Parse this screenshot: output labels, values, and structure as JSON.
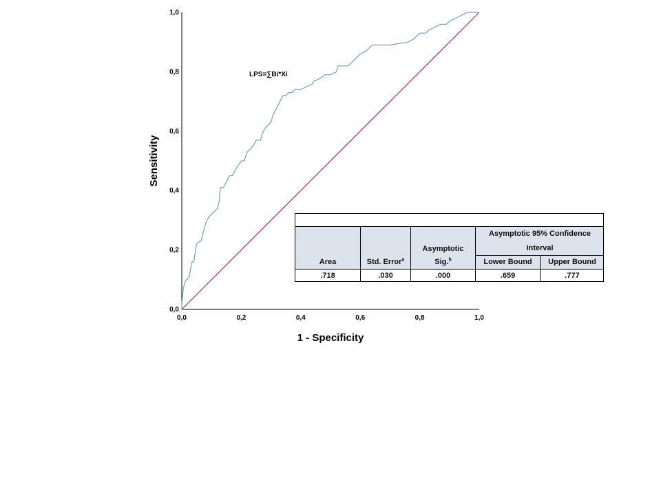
{
  "chart_data": {
    "type": "line",
    "title": "",
    "xlabel": "1 - Specificity",
    "ylabel": "Sensitivity",
    "xlim": [
      0,
      1
    ],
    "ylim": [
      0,
      1
    ],
    "x_ticks": [
      "0,0",
      "0,2",
      "0,4",
      "0,6",
      "0,8",
      "1,0"
    ],
    "y_ticks": [
      "0,0",
      "0,2",
      "0,4",
      "0,6",
      "0,8",
      "1,0"
    ],
    "grid": false,
    "annotation": "LPS=∑Bi*Xi",
    "series": [
      {
        "name": "",
        "color": "#6a9fcf",
        "x": [
          0.0,
          0.0,
          0.005,
          0.01,
          0.015,
          0.018,
          0.025,
          0.03,
          0.035,
          0.038,
          0.04,
          0.05,
          0.06,
          0.065,
          0.07,
          0.08,
          0.09,
          0.1,
          0.12,
          0.125,
          0.13,
          0.14,
          0.15,
          0.16,
          0.17,
          0.18,
          0.2,
          0.21,
          0.22,
          0.23,
          0.24,
          0.25,
          0.255,
          0.265,
          0.27,
          0.28,
          0.3,
          0.305,
          0.31,
          0.32,
          0.33,
          0.34,
          0.35,
          0.36,
          0.37,
          0.38,
          0.4,
          0.42,
          0.44,
          0.445,
          0.45,
          0.47,
          0.48,
          0.5,
          0.52,
          0.525,
          0.53,
          0.56,
          0.58,
          0.6,
          0.62,
          0.63,
          0.64,
          0.66,
          0.7,
          0.76,
          0.78,
          0.79,
          0.8,
          0.82,
          0.83,
          0.85,
          0.87,
          0.88,
          0.89,
          0.9,
          0.92,
          0.94,
          0.96,
          0.98,
          1.0
        ],
        "y": [
          0.0,
          0.02,
          0.07,
          0.09,
          0.1,
          0.1,
          0.11,
          0.14,
          0.16,
          0.16,
          0.16,
          0.22,
          0.23,
          0.23,
          0.25,
          0.29,
          0.31,
          0.32,
          0.34,
          0.36,
          0.41,
          0.41,
          0.43,
          0.45,
          0.45,
          0.47,
          0.5,
          0.5,
          0.53,
          0.54,
          0.55,
          0.57,
          0.57,
          0.57,
          0.59,
          0.61,
          0.63,
          0.65,
          0.66,
          0.68,
          0.7,
          0.72,
          0.72,
          0.73,
          0.73,
          0.74,
          0.74,
          0.75,
          0.76,
          0.77,
          0.77,
          0.78,
          0.79,
          0.79,
          0.8,
          0.82,
          0.82,
          0.82,
          0.84,
          0.86,
          0.87,
          0.88,
          0.89,
          0.89,
          0.89,
          0.9,
          0.91,
          0.92,
          0.93,
          0.93,
          0.94,
          0.95,
          0.96,
          0.96,
          0.96,
          0.97,
          0.98,
          0.99,
          1.0,
          1.0,
          1.0
        ]
      },
      {
        "name": "",
        "color": "#c8254e",
        "x": [
          0,
          1
        ],
        "y": [
          0,
          1
        ]
      }
    ]
  },
  "stats_table": {
    "headers": {
      "area": "Area",
      "std_error": "Std. Error",
      "std_error_sup": "a",
      "asym_sig_line1": "Asymptotic",
      "asym_sig_line2": "Sig.",
      "asym_sig_sup": "b",
      "ci_group": "Asymptotic 95% Confidence Interval",
      "lower_bound": "Lower Bound",
      "upper_bound": "Upper Bound"
    },
    "row": {
      "area": ".718",
      "std_error": ".030",
      "asym_sig": ".000",
      "lower_bound": ".659",
      "upper_bound": ".777"
    }
  }
}
